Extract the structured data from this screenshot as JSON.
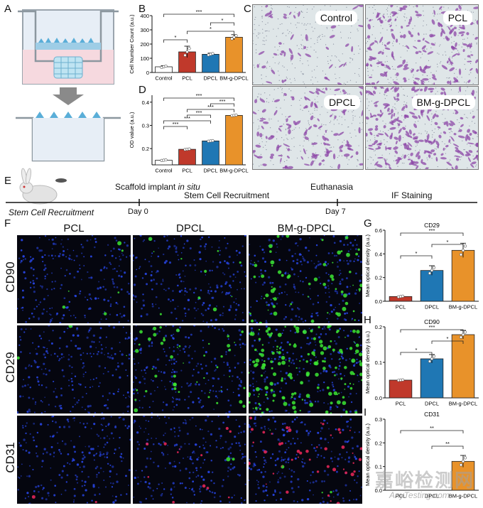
{
  "panels": {
    "A": "A",
    "B": "B",
    "C": "C",
    "D": "D",
    "E": "E",
    "F": "F",
    "G": "G",
    "H": "H",
    "I": "I"
  },
  "micrographs": [
    "Control",
    "PCL",
    "DPCL",
    "BM-g-DPCL"
  ],
  "timeline": {
    "event1_prefix": "Scaffold implant ",
    "event1_italic": "in situ",
    "event2": "Stem Cell Recruitment",
    "event3": "Euthanasia",
    "event4": "IF Staining",
    "left_caption": "Stem Cell Recruitment",
    "day0": "Day 0",
    "day7": "Day 7"
  },
  "fluorescence": {
    "columns": [
      "PCL",
      "DPCL",
      "BM-g-DPCL"
    ],
    "rows": [
      "CD90",
      "CD29",
      "CD31"
    ]
  },
  "watermark": {
    "text": "嘉峪检测网",
    "url": "AnyTesting.com"
  },
  "colors": {
    "control": "#ffffff",
    "pcl": "#c0392b",
    "dpcl": "#1f77b4",
    "bm": "#e8922a"
  },
  "chart_data": [
    {
      "id": "B",
      "type": "bar",
      "categories": [
        "Control",
        "PCL",
        "DPCL",
        "BM-g-DPCL"
      ],
      "values": [
        40,
        145,
        128,
        248
      ],
      "errors": [
        8,
        40,
        8,
        18
      ],
      "ylabel": "Cell Number Count (a.u.)",
      "ylim": [
        0,
        400
      ],
      "yticks": [
        "0",
        "100",
        "200",
        "300",
        "400"
      ],
      "significance": [
        {
          "from": "Control",
          "to": "PCL",
          "label": "*"
        },
        {
          "from": "PCL",
          "to": "BM-g-DPCL",
          "label": "*"
        },
        {
          "from": "DPCL",
          "to": "BM-g-DPCL",
          "label": "*"
        },
        {
          "from": "Control",
          "to": "BM-g-DPCL",
          "label": "***"
        }
      ]
    },
    {
      "id": "D",
      "type": "bar",
      "categories": [
        "Control",
        "PCL",
        "DPCL",
        "BM-g-DPCL"
      ],
      "values": [
        0.15,
        0.197,
        0.233,
        0.343
      ],
      "errors": [
        0.002,
        0.002,
        0.002,
        0.002
      ],
      "ylabel": "OD value (a.u.)",
      "ylim": [
        0.13,
        0.43
      ],
      "yticks": [
        "0.2",
        "0.3",
        "0.4"
      ],
      "significance": [
        {
          "from": "Control",
          "to": "PCL",
          "label": "***"
        },
        {
          "from": "Control",
          "to": "DPCL",
          "label": "***"
        },
        {
          "from": "PCL",
          "to": "DPCL",
          "label": "***"
        },
        {
          "from": "PCL",
          "to": "BM-g-DPCL",
          "label": "***"
        },
        {
          "from": "DPCL",
          "to": "BM-g-DPCL",
          "label": "***"
        },
        {
          "from": "Control",
          "to": "BM-g-DPCL",
          "label": "***"
        }
      ]
    },
    {
      "id": "G",
      "type": "bar",
      "title": "CD29",
      "categories": [
        "PCL",
        "DPCL",
        "BM-g-DPCL"
      ],
      "values": [
        0.04,
        0.26,
        0.43
      ],
      "errors": [
        0.005,
        0.04,
        0.06
      ],
      "ylabel": "Mean optical density (a.u.)",
      "ylim": [
        0,
        0.6
      ],
      "yticks": [
        "0.0",
        "0.2",
        "0.4",
        "0.6"
      ],
      "significance": [
        {
          "from": "PCL",
          "to": "DPCL",
          "label": "*"
        },
        {
          "from": "DPCL",
          "to": "BM-g-DPCL",
          "label": "*"
        },
        {
          "from": "PCL",
          "to": "BM-g-DPCL",
          "label": "***"
        }
      ]
    },
    {
      "id": "H",
      "type": "bar",
      "title": "CD90",
      "categories": [
        "PCL",
        "DPCL",
        "BM-g-DPCL"
      ],
      "values": [
        0.05,
        0.11,
        0.178
      ],
      "errors": [
        0.001,
        0.012,
        0.012
      ],
      "ylabel": "Mean optical density (a.u.)",
      "ylim": [
        0,
        0.2
      ],
      "yticks": [
        "0.0",
        "0.1",
        "0.2"
      ],
      "significance": [
        {
          "from": "PCL",
          "to": "DPCL",
          "label": "*"
        },
        {
          "from": "DPCL",
          "to": "BM-g-DPCL",
          "label": "*"
        },
        {
          "from": "PCL",
          "to": "BM-g-DPCL",
          "label": "***"
        }
      ]
    },
    {
      "id": "I",
      "type": "bar",
      "title": "CD31",
      "categories": [
        "PCL",
        "DPCL",
        "BM-g-DPCL"
      ],
      "values": [
        0,
        0,
        0.122
      ],
      "errors": [
        0,
        0,
        0.025
      ],
      "ylabel": "Mean optical density (a.u.)",
      "ylim": [
        0,
        0.3
      ],
      "yticks": [
        "0.0",
        "0.1",
        "0.2",
        "0.3"
      ],
      "significance": [
        {
          "from": "DPCL",
          "to": "BM-g-DPCL",
          "label": "**"
        },
        {
          "from": "PCL",
          "to": "BM-g-DPCL",
          "label": "**"
        }
      ]
    }
  ]
}
